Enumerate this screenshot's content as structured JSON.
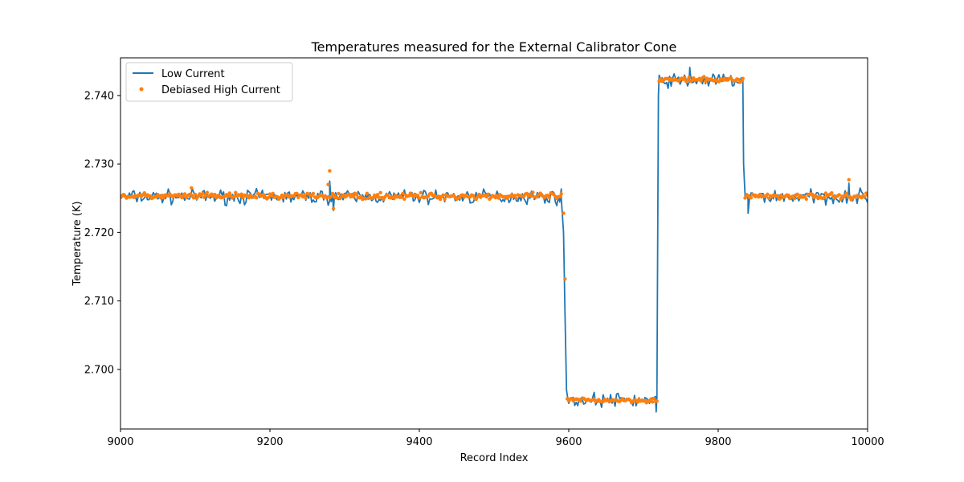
{
  "chart_data": {
    "type": "line",
    "title": "Temperatures measured for the External Calibrator Cone",
    "xlabel": "Record Index",
    "ylabel": "Temperature (K)",
    "xlim": [
      9000,
      10000
    ],
    "ylim": [
      2.6913,
      2.7455
    ],
    "xticks": [
      9000,
      9200,
      9400,
      9600,
      9800,
      10000
    ],
    "yticks": [
      2.7,
      2.71,
      2.72,
      2.73,
      2.74
    ],
    "ytick_labels": [
      "2.700",
      "2.710",
      "2.720",
      "2.730",
      "2.740"
    ],
    "grid": false,
    "legend_position": "top-left",
    "series": [
      {
        "name": "Low Current",
        "style": "line",
        "color": "#1f77b4",
        "segments": [
          {
            "x_start": 9000,
            "x_end": 9590,
            "level": 2.7252,
            "noise": 0.0009
          },
          {
            "x": 9590,
            "y": 2.725
          },
          {
            "x": 9593,
            "y": 2.72
          },
          {
            "x": 9595,
            "y": 2.708
          },
          {
            "x": 9597,
            "y": 2.697
          },
          {
            "x_start": 9598,
            "x_end": 9718,
            "level": 2.6955,
            "noise": 0.0009
          },
          {
            "x": 9720,
            "y": 2.74
          },
          {
            "x_start": 9721,
            "x_end": 9833,
            "level": 2.7422,
            "noise": 0.0009
          },
          {
            "x": 9834,
            "y": 2.73
          },
          {
            "x_start": 9836,
            "x_end": 10000,
            "level": 2.7252,
            "noise": 0.0009
          }
        ],
        "features": [
          {
            "x": 9280,
            "y": 2.7275
          },
          {
            "x": 9285,
            "y": 2.7232
          },
          {
            "x": 9840,
            "y": 2.7228
          },
          {
            "x": 9762,
            "y": 2.7441
          },
          {
            "x": 9717,
            "y": 2.6938
          },
          {
            "x": 9975,
            "y": 2.7272
          }
        ]
      },
      {
        "name": "Debiased High Current",
        "style": "scatter",
        "color": "#ff7f0e",
        "segments": [
          {
            "x_start": 9000,
            "x_end": 9590,
            "level": 2.7253,
            "noise": 0.0004
          },
          {
            "x": 9593,
            "y": 2.7228
          },
          {
            "x": 9595,
            "y": 2.7132
          },
          {
            "x_start": 9598,
            "x_end": 9718,
            "level": 2.6955,
            "noise": 0.0003
          },
          {
            "x_start": 9721,
            "x_end": 9833,
            "level": 2.7423,
            "noise": 0.0003
          },
          {
            "x_start": 9836,
            "x_end": 10000,
            "level": 2.7253,
            "noise": 0.0004
          }
        ],
        "features": [
          {
            "x": 9280,
            "y": 2.729
          },
          {
            "x": 9278,
            "y": 2.727
          },
          {
            "x": 9975,
            "y": 2.7277
          },
          {
            "x": 9095,
            "y": 2.7265
          },
          {
            "x": 9285,
            "y": 2.7235
          }
        ]
      }
    ]
  }
}
